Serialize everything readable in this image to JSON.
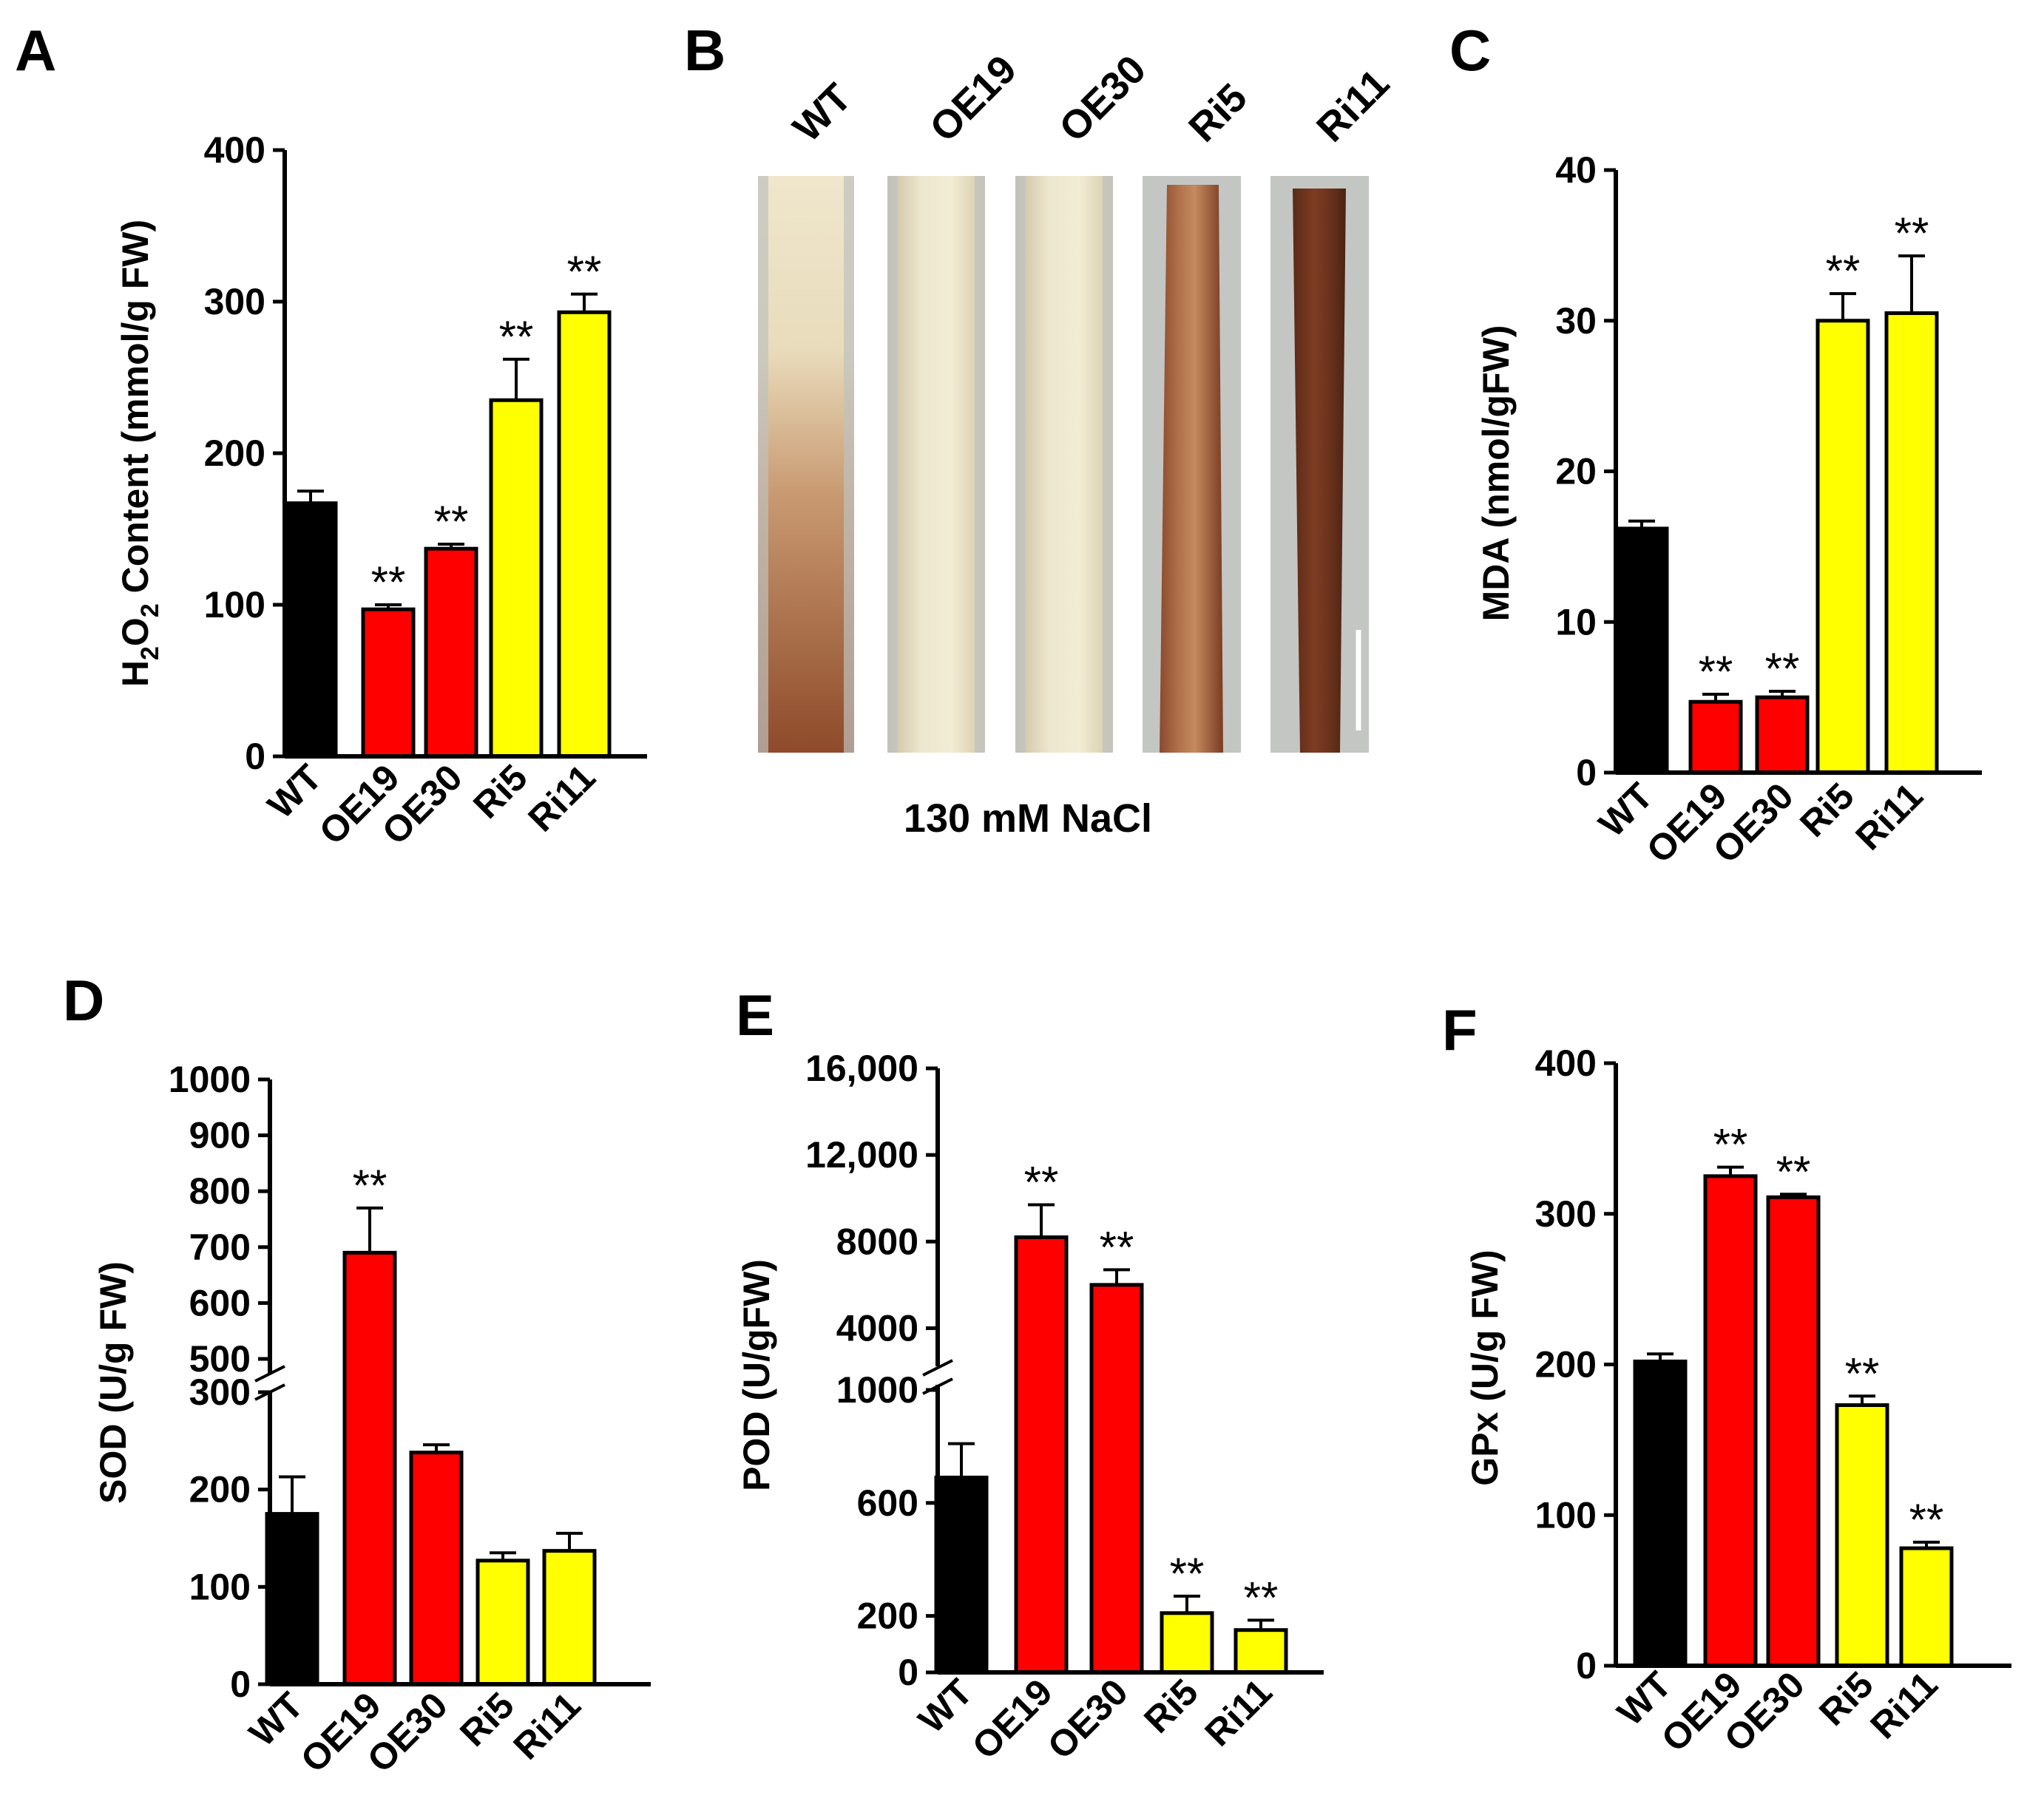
{
  "chart_data": [
    {
      "type": "bar",
      "panel": "A",
      "categories": [
        "WT",
        "OE19",
        "OE30",
        "Ri5",
        "Ri11"
      ],
      "values": [
        167,
        97,
        137,
        235,
        293
      ],
      "errors": [
        8,
        3,
        3,
        27,
        12
      ],
      "significance": [
        "",
        "**",
        "**",
        "**",
        "**"
      ],
      "colors": [
        "#000000",
        "#ff0000",
        "#ff0000",
        "#ffff00",
        "#ffff00"
      ],
      "ylabel": {
        "main": "H",
        "sub1": "2",
        "mid": "O",
        "sub2": "2",
        "rest": " Content (mmol/g FW)"
      },
      "ylim": [
        0,
        400
      ],
      "yticks": [
        0,
        100,
        200,
        300,
        400
      ],
      "ytick_labels": [
        "0",
        "100",
        "200",
        "300",
        "400"
      ],
      "grid": false
    },
    {
      "type": "bar",
      "panel": "C",
      "categories": [
        "WT",
        "OE19",
        "OE30",
        "Ri5",
        "Ri11"
      ],
      "values": [
        16.2,
        4.7,
        5.0,
        30.0,
        30.5
      ],
      "errors": [
        0.5,
        0.5,
        0.4,
        1.8,
        3.8
      ],
      "significance": [
        "",
        "**",
        "**",
        "**",
        "**"
      ],
      "colors": [
        "#000000",
        "#ff0000",
        "#ff0000",
        "#ffff00",
        "#ffff00"
      ],
      "ylabel": "MDA (nmol/gFW)",
      "ylim": [
        0,
        40
      ],
      "yticks": [
        0,
        10,
        20,
        30,
        40
      ],
      "ytick_labels": [
        "0",
        "10",
        "20",
        "30",
        "40"
      ],
      "grid": false
    },
    {
      "type": "bar",
      "panel": "D",
      "categories": [
        "WT",
        "OE19",
        "OE30",
        "Ri5",
        "Ri11"
      ],
      "values": [
        175,
        690,
        238,
        127,
        137
      ],
      "errors": [
        38,
        80,
        8,
        8,
        18
      ],
      "significance": [
        "",
        "**",
        "",
        "",
        ""
      ],
      "colors": [
        "#000000",
        "#ff0000",
        "#ff0000",
        "#ffff00",
        "#ffff00"
      ],
      "ylabel": "SOD (U/g FW)",
      "axis_break": [
        300,
        500
      ],
      "ylim": [
        0,
        1000
      ],
      "yticks": [
        0,
        100,
        200,
        300,
        500,
        600,
        700,
        800,
        900,
        1000
      ],
      "ytick_labels": [
        "0",
        "100",
        "200",
        "300",
        "500",
        "600",
        "700",
        "800",
        "900",
        "1000"
      ],
      "grid": false
    },
    {
      "type": "bar",
      "panel": "E",
      "categories": [
        "WT",
        "OE19",
        "OE30",
        "Ri5",
        "Ri11"
      ],
      "values": [
        690,
        8200,
        6000,
        210,
        150
      ],
      "errors": [
        120,
        1500,
        700,
        60,
        35
      ],
      "significance": [
        "",
        "**",
        "**",
        "**",
        "**"
      ],
      "colors": [
        "#000000",
        "#ff0000",
        "#ff0000",
        "#ffff00",
        "#ffff00"
      ],
      "ylabel": "POD (U/gFW)",
      "axis_break": [
        1000,
        2000
      ],
      "ylim": [
        0,
        16000
      ],
      "yticks": [
        0,
        200,
        600,
        1000,
        4000,
        8000,
        12000,
        16000
      ],
      "ytick_labels": [
        "0",
        "200",
        "600",
        "1000",
        "4000",
        "8000",
        "12,000",
        "16,000"
      ],
      "grid": false
    },
    {
      "type": "bar",
      "panel": "F",
      "categories": [
        "WT",
        "OE19",
        "OE30",
        "Ri5",
        "Ri11"
      ],
      "values": [
        202,
        325,
        311,
        173,
        78
      ],
      "errors": [
        5,
        6,
        2,
        6,
        4
      ],
      "significance": [
        "",
        "**",
        "**",
        "**",
        "**"
      ],
      "colors": [
        "#000000",
        "#ff0000",
        "#ff0000",
        "#ffff00",
        "#ffff00"
      ],
      "ylabel": "GPx (U/g FW)",
      "ylim": [
        0,
        400
      ],
      "yticks": [
        0,
        100,
        200,
        300,
        400
      ],
      "ytick_labels": [
        "0",
        "100",
        "200",
        "300",
        "400"
      ],
      "grid": false
    }
  ],
  "photo_panel": {
    "panel": "B",
    "labels": [
      "WT",
      "OE19",
      "OE30",
      "Ri5",
      "Ri11"
    ],
    "caption": "130  mM NaCl"
  },
  "icons": {
    "photo": "leaf-photo-icon",
    "scale_bar": "scale-bar-icon"
  }
}
